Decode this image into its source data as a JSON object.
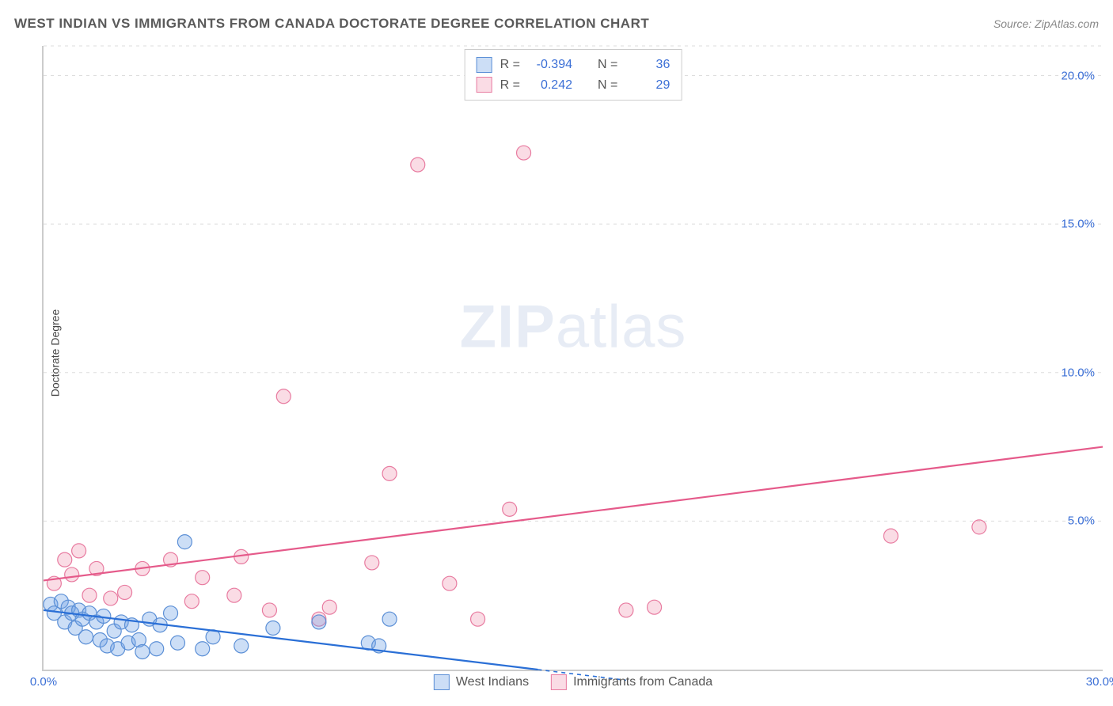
{
  "header": {
    "title": "WEST INDIAN VS IMMIGRANTS FROM CANADA DOCTORATE DEGREE CORRELATION CHART",
    "source": "Source: ZipAtlas.com"
  },
  "axes": {
    "ylabel": "Doctorate Degree",
    "xlim": [
      0,
      30
    ],
    "ylim": [
      0,
      21
    ],
    "yticks": [
      {
        "v": 5,
        "label": "5.0%"
      },
      {
        "v": 10,
        "label": "10.0%"
      },
      {
        "v": 15,
        "label": "15.0%"
      },
      {
        "v": 20,
        "label": "20.0%"
      }
    ],
    "xticks": [
      {
        "v": 0,
        "label": "0.0%"
      },
      {
        "v": 30,
        "label": "30.0%"
      }
    ],
    "grid_color": "#dddddd",
    "axis_color": "#cccccc",
    "tick_label_color": "#3b6fd6"
  },
  "watermark": {
    "zip": "ZIP",
    "atlas": "atlas"
  },
  "legend_top": {
    "series": [
      {
        "key": "A",
        "r_label": "R =",
        "r_value": "-0.394",
        "n_label": "N =",
        "n_value": "36"
      },
      {
        "key": "B",
        "r_label": "R =",
        "r_value": "0.242",
        "n_label": "N =",
        "n_value": "29"
      }
    ]
  },
  "legend_bottom": {
    "items": [
      {
        "key": "A",
        "label": "West Indians"
      },
      {
        "key": "B",
        "label": "Immigrants from Canada"
      }
    ]
  },
  "series": {
    "A": {
      "name": "West Indians",
      "color_fill": "rgba(110,160,230,0.35)",
      "color_stroke": "#5b8fd6",
      "line_color": "#2a6fd6",
      "marker_r": 9,
      "trend": {
        "x1": 0,
        "y1": 2.0,
        "x2": 14.0,
        "y2": 0.0,
        "dash_x2": 16.5
      },
      "points": [
        [
          0.2,
          2.2
        ],
        [
          0.3,
          1.9
        ],
        [
          0.5,
          2.3
        ],
        [
          0.6,
          1.6
        ],
        [
          0.7,
          2.1
        ],
        [
          0.8,
          1.9
        ],
        [
          0.9,
          1.4
        ],
        [
          1.0,
          2.0
        ],
        [
          1.1,
          1.7
        ],
        [
          1.2,
          1.1
        ],
        [
          1.3,
          1.9
        ],
        [
          1.5,
          1.6
        ],
        [
          1.6,
          1.0
        ],
        [
          1.7,
          1.8
        ],
        [
          1.8,
          0.8
        ],
        [
          2.0,
          1.3
        ],
        [
          2.1,
          0.7
        ],
        [
          2.2,
          1.6
        ],
        [
          2.4,
          0.9
        ],
        [
          2.5,
          1.5
        ],
        [
          2.7,
          1.0
        ],
        [
          2.8,
          0.6
        ],
        [
          3.0,
          1.7
        ],
        [
          3.2,
          0.7
        ],
        [
          3.3,
          1.5
        ],
        [
          3.6,
          1.9
        ],
        [
          3.8,
          0.9
        ],
        [
          4.0,
          4.3
        ],
        [
          4.5,
          0.7
        ],
        [
          4.8,
          1.1
        ],
        [
          5.6,
          0.8
        ],
        [
          6.5,
          1.4
        ],
        [
          7.8,
          1.6
        ],
        [
          9.2,
          0.9
        ],
        [
          9.5,
          0.8
        ],
        [
          9.8,
          1.7
        ]
      ]
    },
    "B": {
      "name": "Immigrants from Canada",
      "color_fill": "rgba(240,140,170,0.30)",
      "color_stroke": "#e87ba0",
      "line_color": "#e55a8a",
      "marker_r": 9,
      "trend": {
        "x1": 0,
        "y1": 3.0,
        "x2": 30.0,
        "y2": 7.5
      },
      "points": [
        [
          0.3,
          2.9
        ],
        [
          0.6,
          3.7
        ],
        [
          0.8,
          3.2
        ],
        [
          1.0,
          4.0
        ],
        [
          1.3,
          2.5
        ],
        [
          1.5,
          3.4
        ],
        [
          1.9,
          2.4
        ],
        [
          2.3,
          2.6
        ],
        [
          2.8,
          3.4
        ],
        [
          3.6,
          3.7
        ],
        [
          4.2,
          2.3
        ],
        [
          4.5,
          3.1
        ],
        [
          5.4,
          2.5
        ],
        [
          5.6,
          3.8
        ],
        [
          6.4,
          2.0
        ],
        [
          6.8,
          9.2
        ],
        [
          7.8,
          1.7
        ],
        [
          8.1,
          2.1
        ],
        [
          9.3,
          3.6
        ],
        [
          9.8,
          6.6
        ],
        [
          10.6,
          17.0
        ],
        [
          11.5,
          2.9
        ],
        [
          12.3,
          1.7
        ],
        [
          13.2,
          5.4
        ],
        [
          13.6,
          17.4
        ],
        [
          16.5,
          2.0
        ],
        [
          17.3,
          2.1
        ],
        [
          24.0,
          4.5
        ],
        [
          26.5,
          4.8
        ]
      ]
    }
  }
}
